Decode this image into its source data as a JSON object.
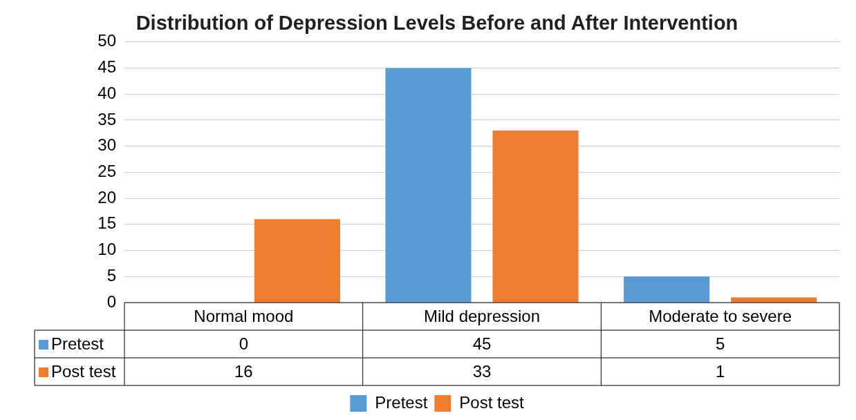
{
  "chart_data": {
    "type": "bar",
    "title": "Distribution of Depression Levels Before and After Intervention",
    "categories": [
      "Normal mood",
      "Mild depression",
      "Moderate to severe"
    ],
    "series": [
      {
        "name": "Pretest",
        "color": "#5b9bd5",
        "values": [
          0,
          45,
          5
        ]
      },
      {
        "name": "Post test",
        "color": "#ed7d31",
        "values": [
          16,
          33,
          1
        ]
      }
    ],
    "ylim": [
      0,
      50
    ],
    "yticks": [
      0,
      5,
      10,
      15,
      20,
      25,
      30,
      35,
      40,
      45,
      50
    ],
    "grid": "y",
    "legend": "bottom",
    "data_labels": true
  }
}
